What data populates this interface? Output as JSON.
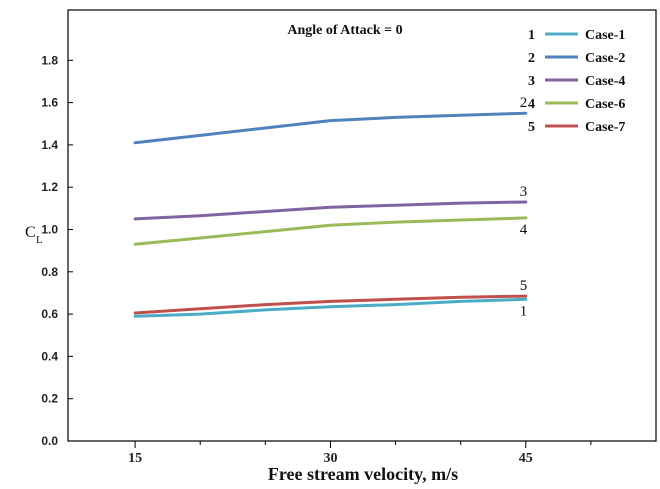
{
  "chart_data": {
    "type": "line",
    "annotation": "Angle of Attack = 0",
    "xlabel": "Free stream velocity, m/s",
    "ylabel_main": "C",
    "ylabel_sub": "L",
    "xlim": [
      10,
      55
    ],
    "ylim": [
      0.0,
      2.0
    ],
    "x_ticks": [
      15,
      30,
      45
    ],
    "x_tick_labels": [
      "15",
      "30",
      "45"
    ],
    "y_ticks": [
      0.0,
      0.2,
      0.4,
      0.6,
      0.8,
      1.0,
      1.2,
      1.4,
      1.6,
      1.8
    ],
    "y_tick_labels": [
      "0.0",
      "0.2",
      "0.4",
      "0.6",
      "0.8",
      "1.0",
      "1.2",
      "1.4",
      "1.6",
      "1.8"
    ],
    "grid": false,
    "legend_position": "top-right",
    "series": [
      {
        "id": "1",
        "name": "Case-1",
        "color": "#4bacc6",
        "x": [
          15,
          20,
          25,
          30,
          35,
          40,
          45
        ],
        "values": [
          0.59,
          0.6,
          0.62,
          0.635,
          0.645,
          0.66,
          0.67
        ]
      },
      {
        "id": "2",
        "name": "Case-2",
        "color": "#4f81bd",
        "x": [
          15,
          20,
          25,
          30,
          35,
          40,
          45
        ],
        "values": [
          1.41,
          1.445,
          1.48,
          1.515,
          1.53,
          1.54,
          1.55
        ]
      },
      {
        "id": "3",
        "name": "Case-4",
        "color": "#8064a2",
        "x": [
          15,
          20,
          25,
          30,
          35,
          40,
          45
        ],
        "values": [
          1.05,
          1.065,
          1.085,
          1.105,
          1.115,
          1.125,
          1.13
        ]
      },
      {
        "id": "4",
        "name": "Case-6",
        "color": "#9bbb59",
        "x": [
          15,
          20,
          25,
          30,
          35,
          40,
          45
        ],
        "values": [
          0.93,
          0.96,
          0.99,
          1.02,
          1.035,
          1.045,
          1.055
        ]
      },
      {
        "id": "5",
        "name": "Case-7",
        "color": "#c0504d",
        "x": [
          15,
          20,
          25,
          30,
          35,
          40,
          45
        ],
        "values": [
          0.605,
          0.625,
          0.645,
          0.66,
          0.67,
          0.68,
          0.685
        ]
      }
    ]
  }
}
